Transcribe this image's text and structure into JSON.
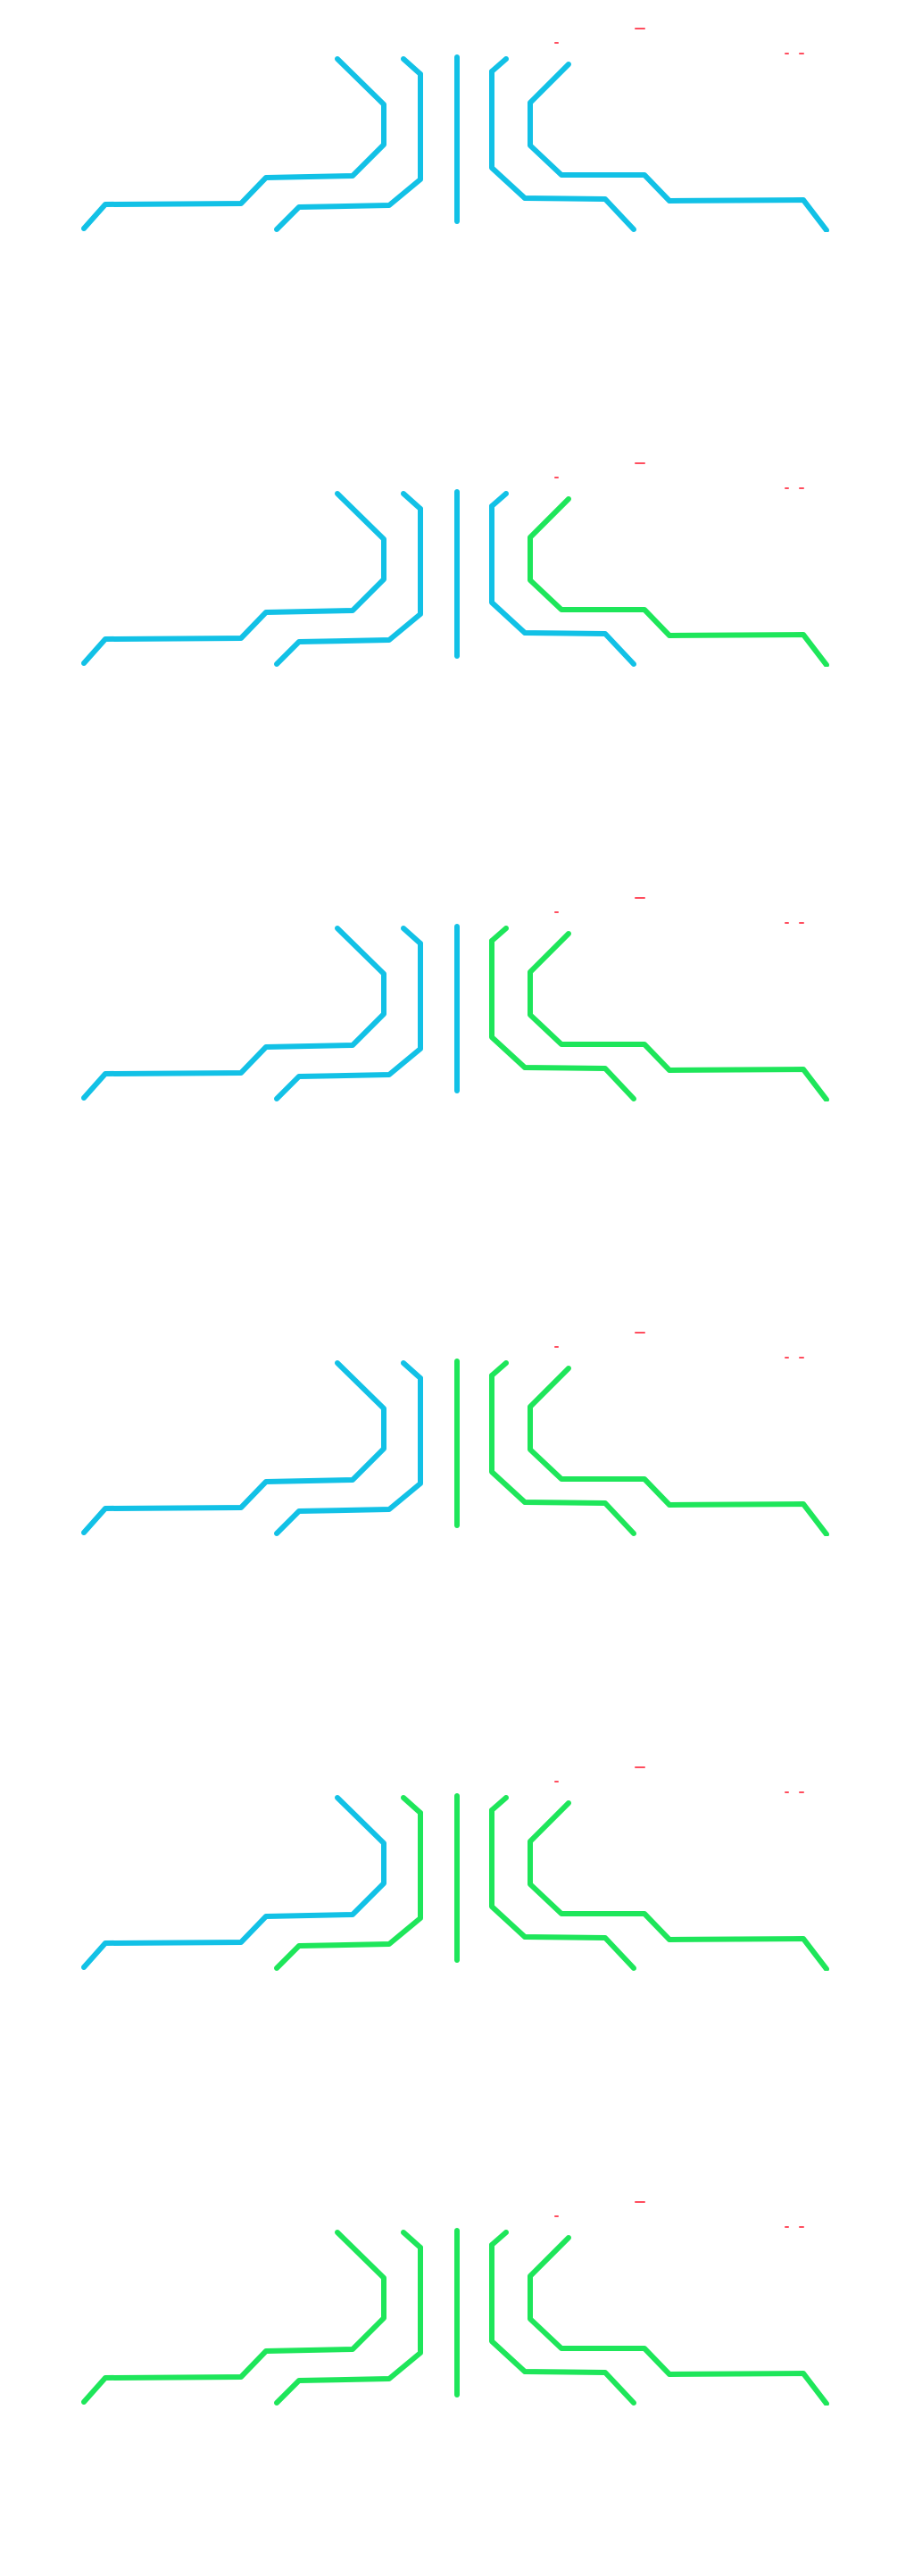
{
  "colors": {
    "inactive": "#12c1e6",
    "active": "#1ee65a",
    "speck": "#ff4d5e",
    "background": "#ffffff"
  },
  "traces": [
    "left-outer",
    "left-inner",
    "left-short",
    "center",
    "right-short",
    "right-inner",
    "right-outer"
  ],
  "frames": [
    {
      "active": []
    },
    {
      "active": [
        "right-outer"
      ]
    },
    {
      "active": [
        "right-outer",
        "right-inner",
        "right-short"
      ]
    },
    {
      "active": [
        "right-outer",
        "right-inner",
        "right-short",
        "center"
      ]
    },
    {
      "active": [
        "right-outer",
        "right-inner",
        "right-short",
        "center",
        "left-short",
        "left-inner"
      ]
    },
    {
      "active": [
        "right-outer",
        "right-inner",
        "right-short",
        "center",
        "left-short",
        "left-inner",
        "left-outer"
      ]
    }
  ]
}
